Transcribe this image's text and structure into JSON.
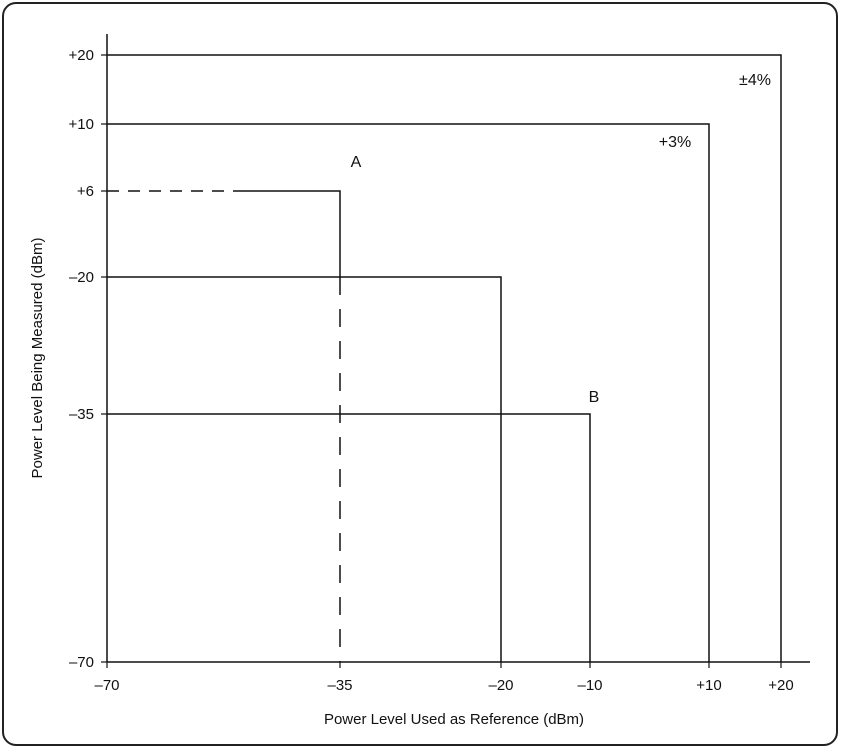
{
  "chart_data": {
    "type": "line",
    "title": "",
    "xlabel": "Power Level Used as Reference (dBm)",
    "ylabel": "Power Level Being Measured (dBm)",
    "x_ticks": [
      "-70",
      "-35",
      "-20",
      "-10",
      "+10",
      "+20"
    ],
    "y_ticks": [
      "+20",
      "+10",
      "+6",
      "-20",
      "-35",
      "-70"
    ],
    "series": [
      {
        "points": [
          [
            -70,
            20
          ],
          [
            20,
            20
          ],
          [
            20,
            -70
          ]
        ],
        "style": "solid"
      },
      {
        "points": [
          [
            -70,
            10
          ],
          [
            10,
            10
          ],
          [
            10,
            -70
          ]
        ],
        "style": "solid"
      },
      {
        "points": [
          [
            -70,
            -20
          ],
          [
            -20,
            -20
          ],
          [
            -20,
            -70
          ]
        ],
        "style": "solid"
      },
      {
        "points": [
          [
            -70,
            -35
          ],
          [
            -10,
            -35
          ],
          [
            -10,
            -70
          ]
        ],
        "style": "solid"
      },
      {
        "points": [
          [
            -70,
            6
          ],
          [
            -35,
            6
          ],
          [
            -35,
            -70
          ]
        ],
        "style": "partly-dashed"
      }
    ],
    "annotations": [
      {
        "text": "±4%",
        "x": 20,
        "y": 20
      },
      {
        "text": "+3%",
        "x": 10,
        "y": 10
      },
      {
        "text": "A",
        "x": -35,
        "y": 6
      },
      {
        "text": "B",
        "x": -10,
        "y": -35
      }
    ],
    "grid": false,
    "legend": "none"
  }
}
